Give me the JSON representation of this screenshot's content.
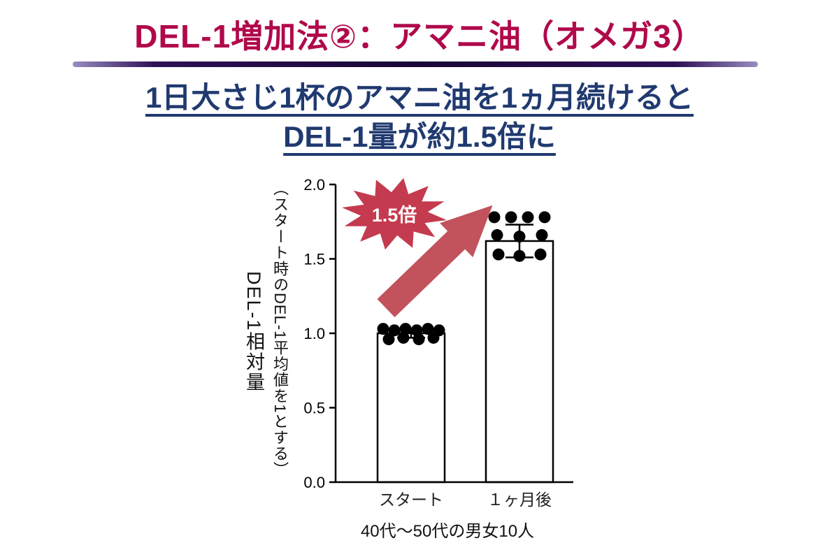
{
  "slide": {
    "title": "DEL-1増加法②：アマニ油（オメガ3）",
    "subtitle_line1": "1日大さじ1杯のアマニ油を1ヵ月続けると",
    "subtitle_line2": "DEL-1量が約1.5倍に",
    "badge": "1.5倍",
    "colors": {
      "title": "#b0094b",
      "subtitle_navy": "#203a70",
      "divider_purple": "#1a0736",
      "accent_red": "#c2525b",
      "burst_red": "#c43a4e"
    }
  },
  "chart_data": {
    "type": "bar",
    "categories": [
      "スタート",
      "１ヶ月後"
    ],
    "values": [
      1.0,
      1.62
    ],
    "errors": [
      0.03,
      0.11
    ],
    "points": [
      [
        [
          -40,
          1.03
        ],
        [
          -24,
          1.02
        ],
        [
          -8,
          1.03
        ],
        [
          8,
          1.02
        ],
        [
          24,
          1.03
        ],
        [
          40,
          1.02
        ],
        [
          -32,
          0.96
        ],
        [
          -11,
          0.97
        ],
        [
          11,
          0.96
        ],
        [
          32,
          0.97
        ]
      ],
      [
        [
          -36,
          1.78
        ],
        [
          -12,
          1.78
        ],
        [
          12,
          1.78
        ],
        [
          36,
          1.78
        ],
        [
          -32,
          1.66
        ],
        [
          0,
          1.65
        ],
        [
          32,
          1.66
        ],
        [
          -30,
          1.53
        ],
        [
          0,
          1.52
        ],
        [
          30,
          1.53
        ]
      ]
    ],
    "title": "",
    "ylabel_main": "DEL-1相対量",
    "ylabel_sub": "（スタート時のDEL-1平均値を1とする）",
    "xlabel": "40代〜50代の男女10人",
    "ylim": [
      0,
      2.0
    ],
    "yticks": [
      0.0,
      0.5,
      1.0,
      1.5,
      2.0
    ],
    "bar_fill": "#ffffff",
    "bar_stroke": "#000000",
    "dot_color": "#000000",
    "annotation": "1.5倍",
    "legend": "none",
    "grid": false
  }
}
